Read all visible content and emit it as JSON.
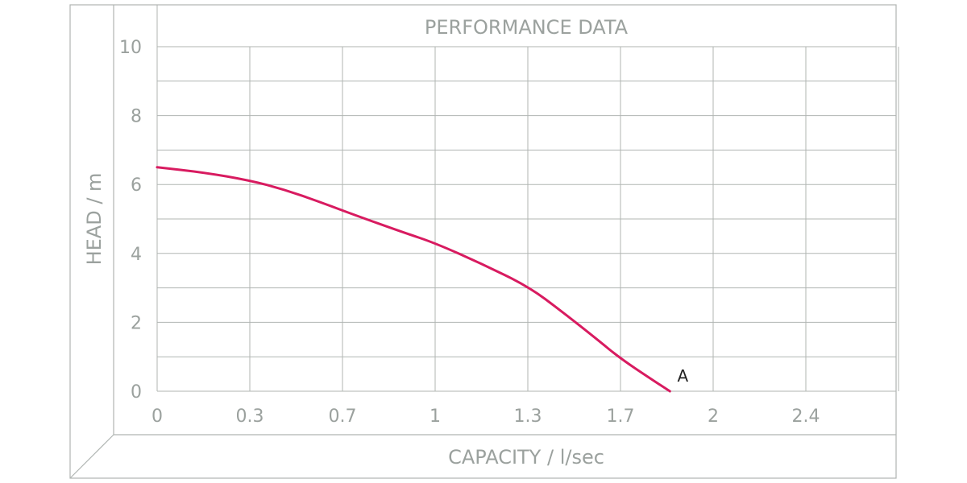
{
  "chart_data": {
    "type": "line",
    "title": "PERFORMANCE DATA",
    "xlabel": "CAPACITY / l/sec",
    "ylabel": "HEAD / m",
    "x_ticks": [
      "0",
      "0.3",
      "0.7",
      "1",
      "1.3",
      "1.7",
      "2",
      "2.4"
    ],
    "y_ticks": [
      "0",
      "2",
      "4",
      "6",
      "8",
      "10"
    ],
    "ylim": [
      0,
      10
    ],
    "grid": true,
    "series": [
      {
        "color": "#d81b60",
        "x": [
          0,
          0.15,
          0.3,
          0.45,
          0.6,
          0.75,
          0.9,
          1.0,
          1.15,
          1.3,
          1.45,
          1.6,
          1.7,
          1.8,
          1.86
        ],
        "y": [
          6.5,
          6.35,
          6.12,
          5.85,
          5.5,
          5.08,
          4.6,
          4.3,
          3.7,
          3.05,
          2.3,
          1.5,
          0.95,
          0.35,
          0.0
        ]
      }
    ],
    "annotations": [
      {
        "text": "A",
        "x": 1.86,
        "y": 0.0
      }
    ]
  }
}
